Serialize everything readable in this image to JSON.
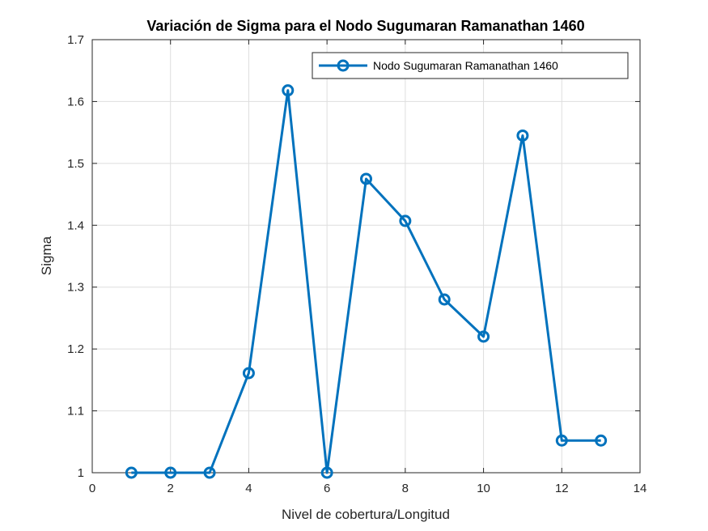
{
  "chart_data": {
    "type": "line",
    "title": "Variación de Sigma para el Nodo Sugumaran Ramanathan 1460",
    "xlabel": "Nivel de cobertura/Longitud",
    "ylabel": "Sigma",
    "xlim": [
      0,
      14
    ],
    "ylim": [
      1,
      1.7
    ],
    "xticks": [
      0,
      2,
      4,
      6,
      8,
      10,
      12,
      14
    ],
    "xtick_labels": [
      "0",
      "2",
      "4",
      "6",
      "8",
      "10",
      "12",
      "14"
    ],
    "yticks": [
      1,
      1.1,
      1.2,
      1.3,
      1.4,
      1.5,
      1.6,
      1.7
    ],
    "ytick_labels": [
      "1",
      "1.1",
      "1.2",
      "1.3",
      "1.4",
      "1.5",
      "1.6",
      "1.7"
    ],
    "grid": true,
    "legend_position": "top-right",
    "series": [
      {
        "name": "Nodo Sugumaran Ramanathan 1460",
        "color": "#0072BD",
        "marker": "circle",
        "x": [
          1,
          2,
          3,
          4,
          5,
          6,
          7,
          8,
          9,
          10,
          11,
          12,
          13
        ],
        "y": [
          1.0,
          1.0,
          1.0,
          1.161,
          1.618,
          1.0,
          1.475,
          1.407,
          1.28,
          1.22,
          1.545,
          1.052,
          1.052
        ]
      }
    ]
  }
}
